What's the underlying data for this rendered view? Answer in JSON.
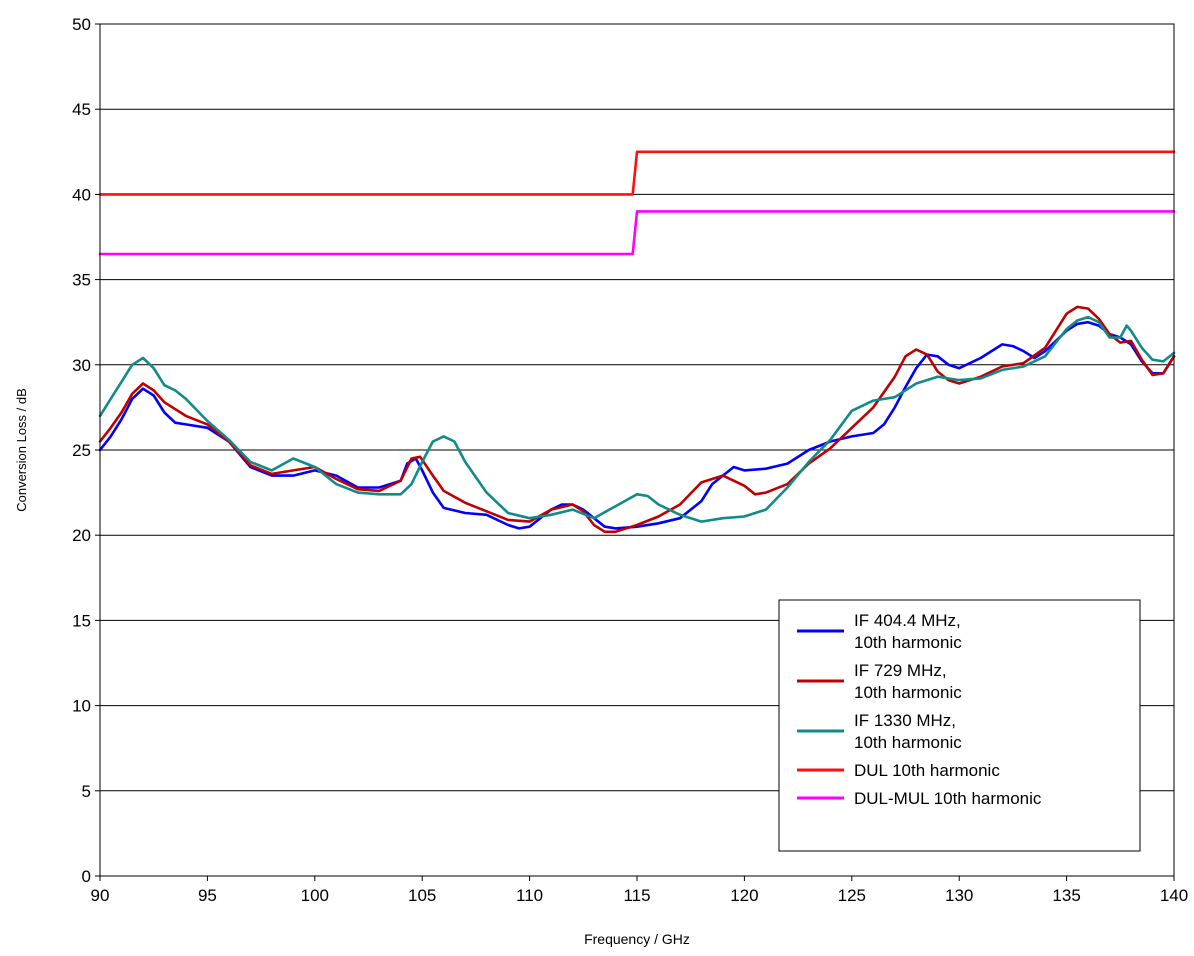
{
  "chart_data": {
    "type": "line",
    "xlabel": "Frequency / GHz",
    "ylabel": "Conversion Loss / dB",
    "xlim": [
      90,
      140
    ],
    "ylim": [
      0,
      50
    ],
    "xticks": [
      90,
      95,
      100,
      105,
      110,
      115,
      120,
      125,
      130,
      135,
      140
    ],
    "yticks": [
      0,
      5,
      10,
      15,
      20,
      25,
      30,
      35,
      40,
      45,
      50
    ],
    "grid": "horizontal",
    "legend_position": "bottom-right",
    "series": [
      {
        "name": "IF 404.4 MHz,\n10th harmonic",
        "color": "#0000ff",
        "points": [
          [
            90,
            25
          ],
          [
            90.5,
            25.8
          ],
          [
            91,
            26.8
          ],
          [
            91.5,
            28
          ],
          [
            92,
            28.6
          ],
          [
            92.5,
            28.2
          ],
          [
            93,
            27.2
          ],
          [
            93.5,
            26.6
          ],
          [
            94,
            26.5
          ],
          [
            95,
            26.3
          ],
          [
            96,
            25.5
          ],
          [
            97,
            24
          ],
          [
            98,
            23.5
          ],
          [
            99,
            23.5
          ],
          [
            100,
            23.8
          ],
          [
            101,
            23.5
          ],
          [
            102,
            22.8
          ],
          [
            103,
            22.8
          ],
          [
            104,
            23.2
          ],
          [
            104.3,
            24.2
          ],
          [
            104.7,
            24.5
          ],
          [
            105,
            23.8
          ],
          [
            105.5,
            22.5
          ],
          [
            106,
            21.6
          ],
          [
            107,
            21.3
          ],
          [
            108,
            21.2
          ],
          [
            109,
            20.6
          ],
          [
            109.5,
            20.4
          ],
          [
            110,
            20.5
          ],
          [
            111,
            21.5
          ],
          [
            111.5,
            21.8
          ],
          [
            112,
            21.8
          ],
          [
            112.5,
            21.5
          ],
          [
            113,
            21
          ],
          [
            113.5,
            20.5
          ],
          [
            114,
            20.4
          ],
          [
            115,
            20.5
          ],
          [
            116,
            20.7
          ],
          [
            117,
            21
          ],
          [
            118,
            22
          ],
          [
            118.5,
            23
          ],
          [
            119,
            23.5
          ],
          [
            119.5,
            24
          ],
          [
            120,
            23.8
          ],
          [
            121,
            23.9
          ],
          [
            122,
            24.2
          ],
          [
            123,
            25
          ],
          [
            124,
            25.5
          ],
          [
            125,
            25.8
          ],
          [
            126,
            26
          ],
          [
            126.5,
            26.5
          ],
          [
            127,
            27.5
          ],
          [
            127.5,
            28.7
          ],
          [
            128,
            29.8
          ],
          [
            128.5,
            30.6
          ],
          [
            129,
            30.5
          ],
          [
            129.5,
            30
          ],
          [
            130,
            29.8
          ],
          [
            131,
            30.4
          ],
          [
            132,
            31.2
          ],
          [
            132.5,
            31.1
          ],
          [
            133,
            30.8
          ],
          [
            133.5,
            30.4
          ],
          [
            134,
            30.8
          ],
          [
            135,
            32
          ],
          [
            135.5,
            32.4
          ],
          [
            136,
            32.5
          ],
          [
            136.5,
            32.3
          ],
          [
            137,
            31.8
          ],
          [
            137.5,
            31.6
          ],
          [
            138,
            31.2
          ],
          [
            138.5,
            30.2
          ],
          [
            139,
            29.5
          ],
          [
            139.5,
            29.5
          ],
          [
            140,
            30.5
          ]
        ]
      },
      {
        "name": "IF 729 MHz,\n10th harmonic",
        "color": "#c00000",
        "points": [
          [
            90,
            25.5
          ],
          [
            90.5,
            26.3
          ],
          [
            91,
            27.2
          ],
          [
            91.5,
            28.3
          ],
          [
            92,
            28.9
          ],
          [
            92.5,
            28.5
          ],
          [
            93,
            27.8
          ],
          [
            94,
            27
          ],
          [
            95,
            26.5
          ],
          [
            96,
            25.5
          ],
          [
            97,
            24.1
          ],
          [
            98,
            23.6
          ],
          [
            99,
            23.8
          ],
          [
            100,
            24
          ],
          [
            101,
            23.3
          ],
          [
            102,
            22.7
          ],
          [
            103,
            22.6
          ],
          [
            104,
            23.2
          ],
          [
            104.5,
            24.5
          ],
          [
            104.9,
            24.6
          ],
          [
            105.5,
            23.5
          ],
          [
            106,
            22.6
          ],
          [
            107,
            21.9
          ],
          [
            108,
            21.4
          ],
          [
            109,
            20.9
          ],
          [
            110,
            20.8
          ],
          [
            111,
            21.5
          ],
          [
            112,
            21.8
          ],
          [
            112.5,
            21.4
          ],
          [
            113,
            20.6
          ],
          [
            113.5,
            20.2
          ],
          [
            114,
            20.2
          ],
          [
            115,
            20.6
          ],
          [
            116,
            21.1
          ],
          [
            117,
            21.8
          ],
          [
            118,
            23.1
          ],
          [
            119,
            23.5
          ],
          [
            119.5,
            23.2
          ],
          [
            120,
            22.9
          ],
          [
            120.5,
            22.4
          ],
          [
            121,
            22.5
          ],
          [
            122,
            23
          ],
          [
            123,
            24.2
          ],
          [
            124,
            25.1
          ],
          [
            125,
            26.3
          ],
          [
            126,
            27.5
          ],
          [
            127,
            29.3
          ],
          [
            127.5,
            30.5
          ],
          [
            128,
            30.9
          ],
          [
            128.5,
            30.6
          ],
          [
            129,
            29.6
          ],
          [
            129.5,
            29.1
          ],
          [
            130,
            28.9
          ],
          [
            131,
            29.3
          ],
          [
            132,
            29.9
          ],
          [
            133,
            30.1
          ],
          [
            134,
            31
          ],
          [
            134.5,
            32
          ],
          [
            135,
            33
          ],
          [
            135.5,
            33.4
          ],
          [
            136,
            33.3
          ],
          [
            136.5,
            32.7
          ],
          [
            137,
            31.8
          ],
          [
            137.5,
            31.3
          ],
          [
            138,
            31.4
          ],
          [
            138.5,
            30.3
          ],
          [
            139,
            29.4
          ],
          [
            139.5,
            29.5
          ],
          [
            140,
            30.5
          ]
        ]
      },
      {
        "name": "IF 1330 MHz,\n10th harmonic",
        "color": "#138a8a",
        "points": [
          [
            90,
            27
          ],
          [
            90.5,
            28
          ],
          [
            91,
            29
          ],
          [
            91.5,
            30
          ],
          [
            92,
            30.4
          ],
          [
            92.5,
            29.8
          ],
          [
            93,
            28.8
          ],
          [
            93.5,
            28.5
          ],
          [
            94,
            28
          ],
          [
            95,
            26.7
          ],
          [
            96,
            25.6
          ],
          [
            97,
            24.3
          ],
          [
            98,
            23.8
          ],
          [
            99,
            24.5
          ],
          [
            100,
            24
          ],
          [
            101,
            23
          ],
          [
            102,
            22.5
          ],
          [
            103,
            22.4
          ],
          [
            104,
            22.4
          ],
          [
            104.5,
            23
          ],
          [
            105,
            24.3
          ],
          [
            105.5,
            25.5
          ],
          [
            106,
            25.8
          ],
          [
            106.5,
            25.5
          ],
          [
            107,
            24.3
          ],
          [
            108,
            22.5
          ],
          [
            109,
            21.3
          ],
          [
            110,
            21
          ],
          [
            111,
            21.2
          ],
          [
            112,
            21.5
          ],
          [
            113,
            21
          ],
          [
            114,
            21.7
          ],
          [
            115,
            22.4
          ],
          [
            115.5,
            22.3
          ],
          [
            116,
            21.8
          ],
          [
            117,
            21.2
          ],
          [
            118,
            20.8
          ],
          [
            119,
            21
          ],
          [
            120,
            21.1
          ],
          [
            121,
            21.5
          ],
          [
            122,
            22.8
          ],
          [
            123,
            24.3
          ],
          [
            124,
            25.6
          ],
          [
            125,
            27.3
          ],
          [
            126,
            27.9
          ],
          [
            127,
            28.1
          ],
          [
            128,
            28.9
          ],
          [
            129,
            29.3
          ],
          [
            130,
            29.1
          ],
          [
            131,
            29.2
          ],
          [
            132,
            29.7
          ],
          [
            133,
            29.9
          ],
          [
            134,
            30.5
          ],
          [
            135,
            32.1
          ],
          [
            135.5,
            32.6
          ],
          [
            136,
            32.8
          ],
          [
            136.5,
            32.5
          ],
          [
            137,
            31.6
          ],
          [
            137.5,
            31.6
          ],
          [
            137.8,
            32.3
          ],
          [
            138,
            32
          ],
          [
            138.5,
            31
          ],
          [
            139,
            30.3
          ],
          [
            139.5,
            30.2
          ],
          [
            140,
            30.7
          ]
        ]
      },
      {
        "name": "DUL 10th harmonic",
        "color": "#ff1010",
        "points": [
          [
            90,
            40
          ],
          [
            114.8,
            40
          ],
          [
            115,
            42.5
          ],
          [
            140,
            42.5
          ]
        ]
      },
      {
        "name": "DUL-MUL 10th harmonic",
        "color": "#ff00ff",
        "points": [
          [
            90,
            36.5
          ],
          [
            114.8,
            36.5
          ],
          [
            115,
            39
          ],
          [
            140,
            39
          ]
        ]
      }
    ]
  }
}
